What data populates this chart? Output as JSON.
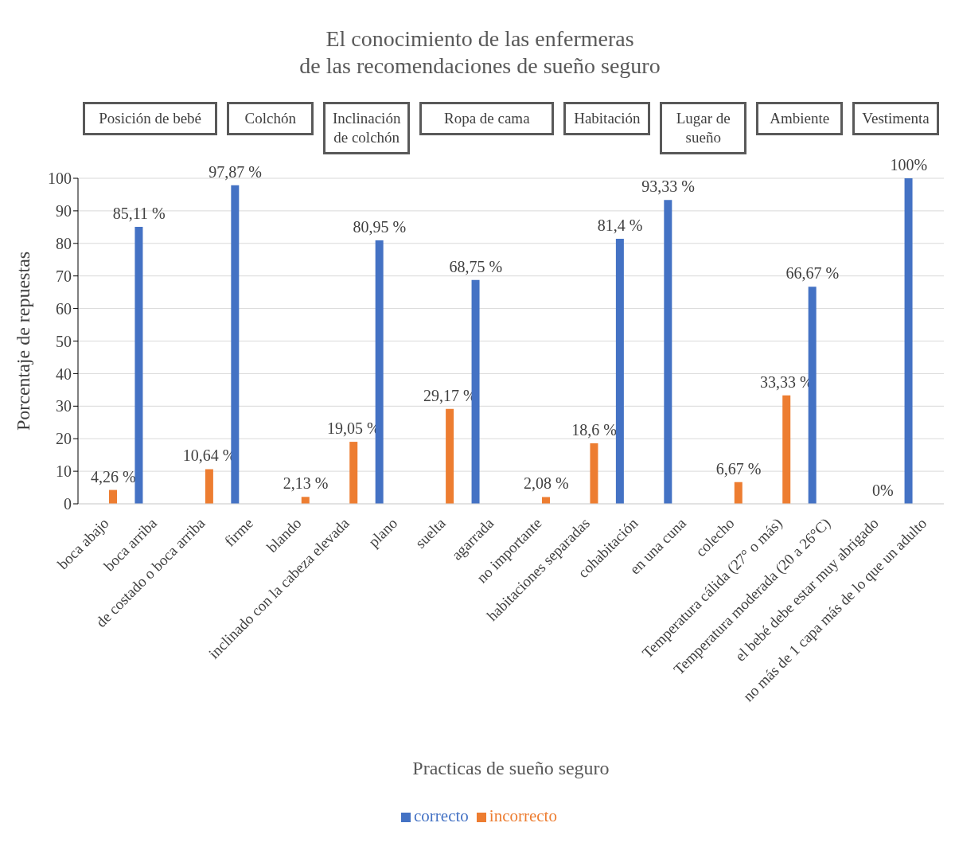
{
  "chart_data": {
    "type": "bar",
    "title": "El conocimiento de las enfermeras\nde las recomendaciones de sueño seguro",
    "xlabel": "Practicas de sueño seguro",
    "ylabel": "Porcentaje de repuestas",
    "annotations": [
      "Posición de bebé",
      "Colchón",
      "Inclinación de colchón",
      "Ropa de cama",
      "Habitación",
      "Lugar de sueño",
      "Ambiente",
      "Vestimenta"
    ],
    "categories": [
      "boca abajo",
      "boca arriba",
      "de costado o boca arriba",
      "firme",
      "blando",
      "inclinado con la cabeza elevada",
      "plano",
      "suelta",
      "agarrada",
      "no importante",
      "habitaciones separadas",
      "cohabitación",
      "en una cuna",
      "colecho",
      "Temperatura cálida (27° o más)",
      "Temperatura moderada (20 a 26°C)",
      "el bebé debe estar muy abrigado",
      "no más de 1 capa más de lo que un adulto"
    ],
    "series": [
      {
        "name": "correcto",
        "color": "#4472c4",
        "values": [
          null,
          85.11,
          null,
          97.87,
          null,
          null,
          80.95,
          null,
          68.75,
          null,
          null,
          81.4,
          93.33,
          null,
          null,
          66.67,
          null,
          100
        ],
        "value_labels": [
          null,
          "85,11 %",
          null,
          "97,87 %",
          null,
          null,
          "80,95 %",
          null,
          "68,75 %",
          null,
          null,
          "81,4 %",
          "93,33 %",
          null,
          null,
          "66,67 %",
          null,
          "100%"
        ]
      },
      {
        "name": "incorrecto",
        "color": "#ed7d31",
        "values": [
          4.26,
          null,
          10.64,
          null,
          2.13,
          19.05,
          null,
          29.17,
          null,
          2.08,
          18.6,
          null,
          null,
          6.67,
          33.33,
          null,
          0,
          null
        ],
        "value_labels": [
          "4,26 %",
          null,
          "10,64 %",
          null,
          "2,13 %",
          "19,05 %",
          null,
          "29,17 %",
          null,
          "2,08 %",
          "18,6 %",
          null,
          null,
          "6,67 %",
          "33,33 %",
          null,
          "0%",
          null
        ]
      }
    ],
    "ylim": [
      0,
      100
    ],
    "yticks": [
      0,
      10,
      20,
      30,
      40,
      50,
      60,
      70,
      80,
      90,
      100
    ],
    "grid": "y",
    "legend": "bottom"
  }
}
